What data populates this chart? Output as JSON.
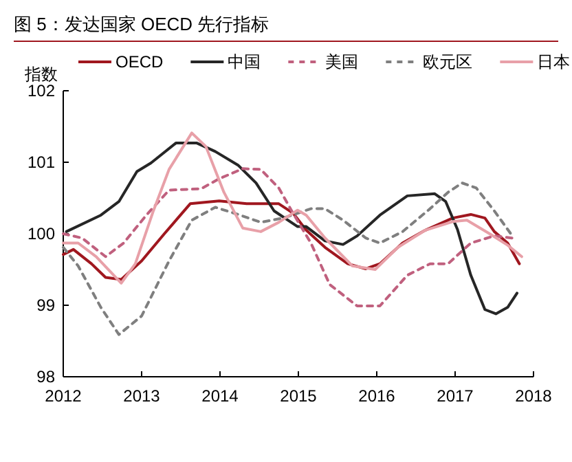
{
  "chart_data": {
    "type": "line",
    "title": "图 5：发达国家 OECD 先行指标",
    "ylabel": "指数",
    "xlim": [
      2012,
      2018
    ],
    "xticks": [
      2012,
      2013,
      2014,
      2015,
      2016,
      2017,
      2018
    ],
    "ylim": [
      98,
      102
    ],
    "yticks": [
      98,
      99,
      100,
      101,
      102
    ],
    "grid": false,
    "legend": "top",
    "marker": "none",
    "series": [
      {
        "name": "OECD",
        "color": "#a0171f",
        "line_style": "solid",
        "x": [
          2012.0,
          2012.13,
          2012.36,
          2012.54,
          2012.74,
          2013.0,
          2013.29,
          2013.62,
          2013.99,
          2014.34,
          2014.75,
          2014.93,
          2015.1,
          2015.34,
          2015.63,
          2015.86,
          2016.04,
          2016.33,
          2016.62,
          2016.97,
          2017.2,
          2017.38,
          2017.5,
          2017.67,
          2017.82
        ],
        "values": [
          99.71,
          99.78,
          99.58,
          99.39,
          99.36,
          99.62,
          100.0,
          100.42,
          100.46,
          100.42,
          100.42,
          100.29,
          100.05,
          99.81,
          99.58,
          99.51,
          99.58,
          99.87,
          100.05,
          100.22,
          100.27,
          100.22,
          100.03,
          99.87,
          99.58
        ]
      },
      {
        "name": "中国",
        "color": "#262626",
        "line_style": "solid",
        "x": [
          2012.04,
          2012.48,
          2012.71,
          2012.94,
          2013.12,
          2013.44,
          2013.7,
          2013.94,
          2014.23,
          2014.46,
          2014.69,
          2014.99,
          2015.1,
          2015.34,
          2015.57,
          2015.75,
          2016.04,
          2016.39,
          2016.74,
          2016.88,
          2017.03,
          2017.2,
          2017.38,
          2017.52,
          2017.67,
          2017.79
        ],
        "values": [
          100.03,
          100.26,
          100.45,
          100.87,
          100.99,
          101.27,
          101.27,
          101.15,
          100.96,
          100.71,
          100.32,
          100.1,
          100.1,
          99.9,
          99.85,
          99.97,
          100.26,
          100.53,
          100.56,
          100.45,
          100.06,
          99.42,
          98.94,
          98.88,
          98.97,
          99.17
        ]
      },
      {
        "name": "美国",
        "color": "#c0607e",
        "line_style": "dashed",
        "x": [
          2012.0,
          2012.24,
          2012.54,
          2012.77,
          2013.06,
          2013.35,
          2013.76,
          2013.99,
          2014.29,
          2014.52,
          2014.75,
          2014.93,
          2015.16,
          2015.4,
          2015.75,
          2016.04,
          2016.39,
          2016.68,
          2016.91,
          2017.2,
          2017.5,
          2017.73
        ],
        "values": [
          100.0,
          99.94,
          99.68,
          99.87,
          100.26,
          100.61,
          100.63,
          100.77,
          100.91,
          100.9,
          100.64,
          100.29,
          99.87,
          99.29,
          98.99,
          98.99,
          99.42,
          99.58,
          99.58,
          99.87,
          99.97,
          99.94
        ]
      },
      {
        "name": "欧元区",
        "color": "#7f7f7f",
        "line_style": "dashed",
        "x": [
          2012.0,
          2012.19,
          2012.48,
          2012.71,
          2013.0,
          2013.35,
          2013.64,
          2013.94,
          2014.23,
          2014.52,
          2014.81,
          2015.16,
          2015.34,
          2015.57,
          2015.86,
          2016.04,
          2016.33,
          2016.68,
          2016.91,
          2017.09,
          2017.27,
          2017.5,
          2017.73
        ],
        "values": [
          99.81,
          99.55,
          98.97,
          98.59,
          98.85,
          99.62,
          100.19,
          100.37,
          100.27,
          100.16,
          100.22,
          100.35,
          100.35,
          100.19,
          99.94,
          99.87,
          100.03,
          100.35,
          100.58,
          100.71,
          100.64,
          100.32,
          99.97
        ]
      },
      {
        "name": "日本",
        "color": "#e8a0a8",
        "line_style": "solid",
        "x": [
          2012.0,
          2012.19,
          2012.42,
          2012.74,
          2012.92,
          2013.15,
          2013.35,
          2013.64,
          2013.82,
          2014.05,
          2014.29,
          2014.52,
          2014.75,
          2014.99,
          2015.1,
          2015.34,
          2015.69,
          2015.98,
          2016.27,
          2016.62,
          2016.97,
          2017.15,
          2017.44,
          2017.67,
          2017.85
        ],
        "values": [
          99.87,
          99.87,
          99.68,
          99.31,
          99.58,
          100.32,
          100.9,
          101.41,
          101.22,
          100.58,
          100.08,
          100.03,
          100.16,
          100.33,
          100.26,
          99.94,
          99.55,
          99.5,
          99.81,
          100.05,
          100.17,
          100.19,
          100.0,
          99.84,
          99.68
        ]
      }
    ]
  }
}
